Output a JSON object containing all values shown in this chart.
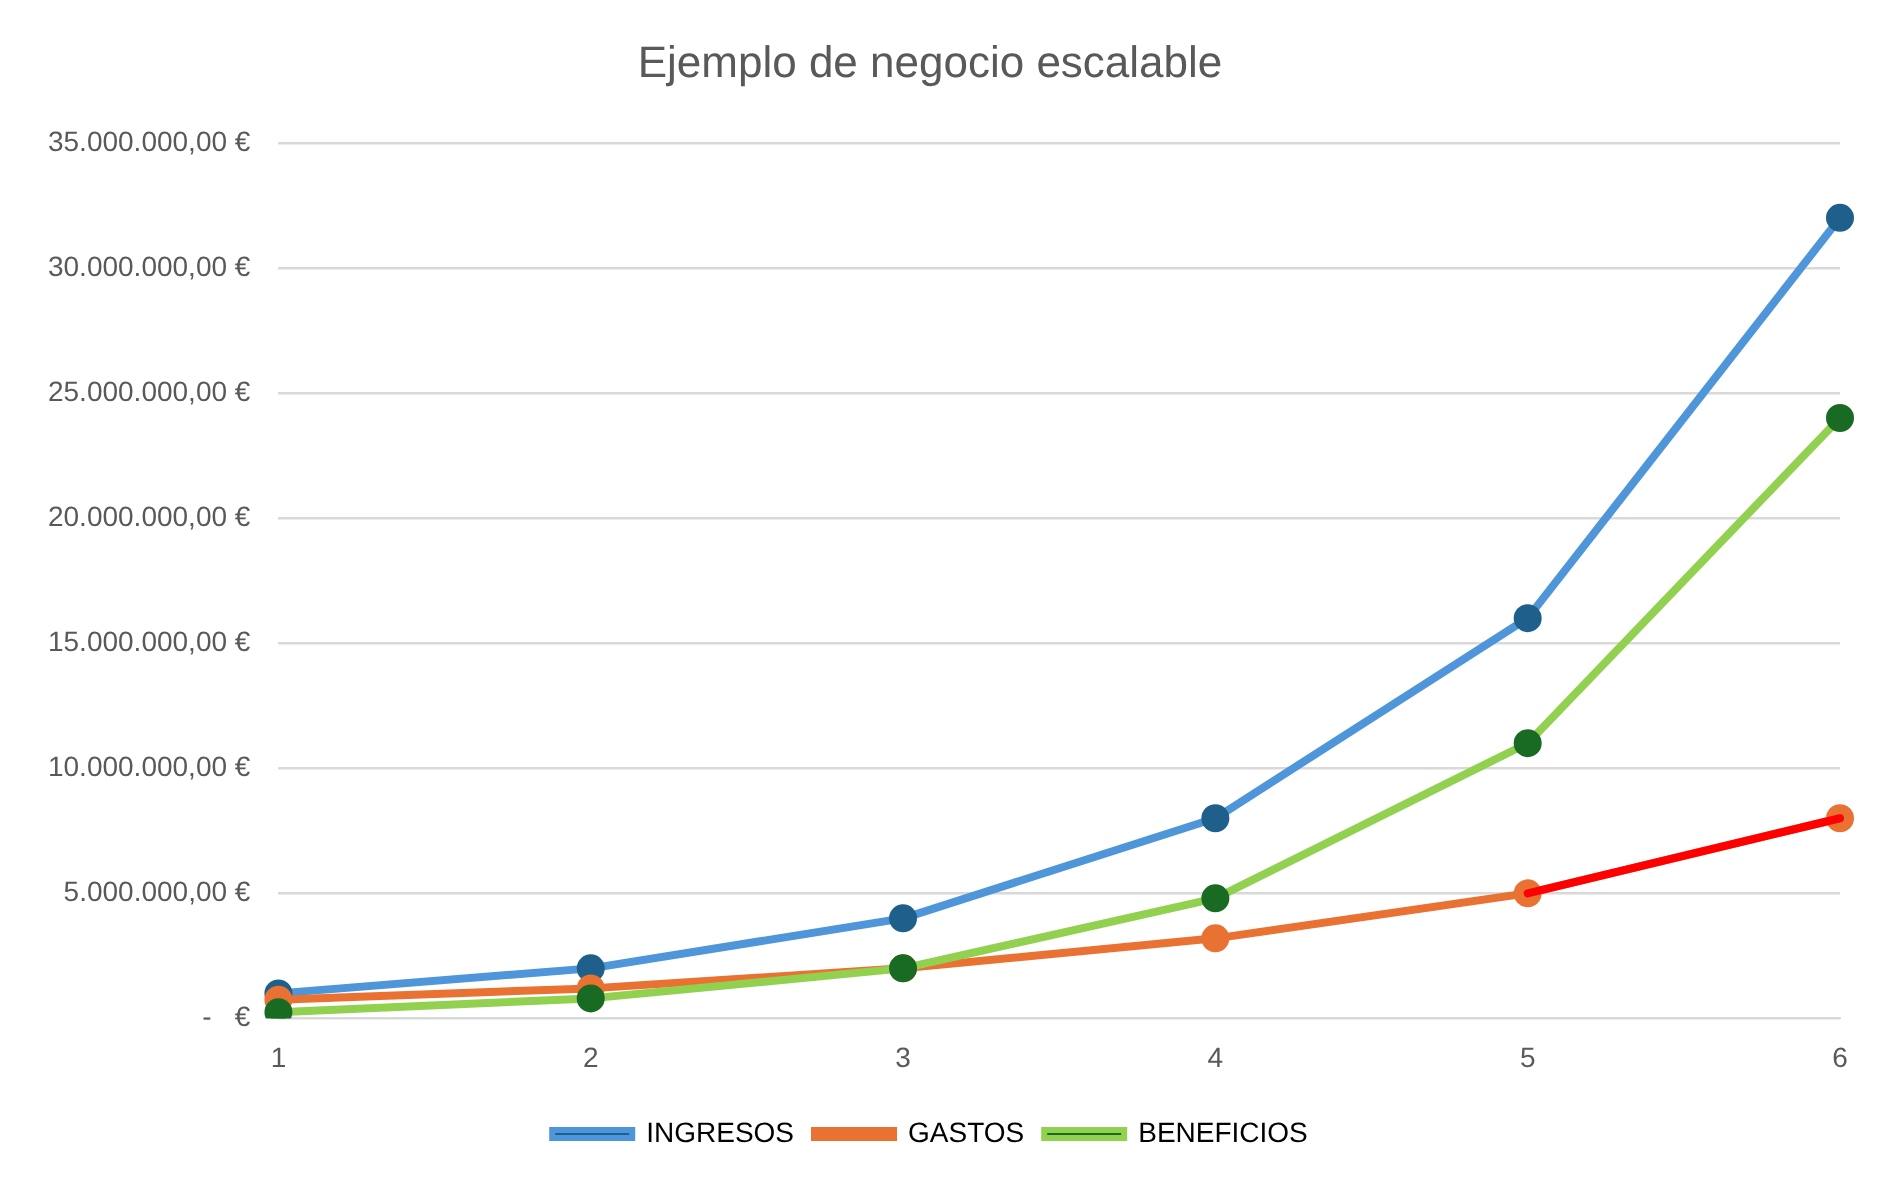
{
  "chart_data": {
    "type": "line",
    "title": "Ejemplo de negocio escalable",
    "categories": [
      "1",
      "2",
      "3",
      "4",
      "5",
      "6"
    ],
    "series": [
      {
        "type": "line",
        "color": "#ff0000",
        "values": [
          null,
          null,
          null,
          null,
          5000000,
          8000000
        ],
        "marker": "none"
      },
      {
        "name": "INGRESOS",
        "color": "#4e95d9",
        "colors": [
          "#1f5f8b",
          "#1f5f8b",
          "#1f5f8b",
          "#1f5f8b",
          "#1f5f8b",
          "#1f5f8b"
        ],
        "values": [
          1000000,
          2000000,
          4000000,
          8000000,
          16000000,
          32000000
        ]
      },
      {
        "name": "GASTOS",
        "color": "#e97132",
        "colors": [
          "#e97132",
          "#e97132",
          "#e97132",
          "#e97132",
          "#e97132",
          "#e97132"
        ],
        "values": [
          750000,
          1200000,
          2000000,
          3200000,
          5000000,
          8000000
        ]
      },
      {
        "name": "BENEFICIOS",
        "color": "#92d050",
        "colors": [
          "#196b24",
          "#196b24",
          "#196b24",
          "#196b24",
          "#196b24",
          "#196b24"
        ],
        "values": [
          250000,
          800000,
          2000000,
          4800000,
          11000000,
          24000000
        ]
      }
    ],
    "ylim": [
      0,
      35000000
    ],
    "yticks": [
      {
        "value": 0,
        "label": "-   €"
      },
      {
        "value": 5000000,
        "label": "5.000.000,00 €"
      },
      {
        "value": 10000000,
        "label": "10.000.000,00 €"
      },
      {
        "value": 15000000,
        "label": "15.000.000,00 €"
      },
      {
        "value": 20000000,
        "label": "20.000.000,00 €"
      },
      {
        "value": 25000000,
        "label": "25.000.000,00 €"
      },
      {
        "value": 30000000,
        "label": "30.000.000,00 €"
      },
      {
        "value": 35000000,
        "label": "35.000.000,00 €"
      }
    ],
    "grid": "y",
    "legend": "bottom",
    "marker": "circle",
    "line_style": "solid"
  }
}
